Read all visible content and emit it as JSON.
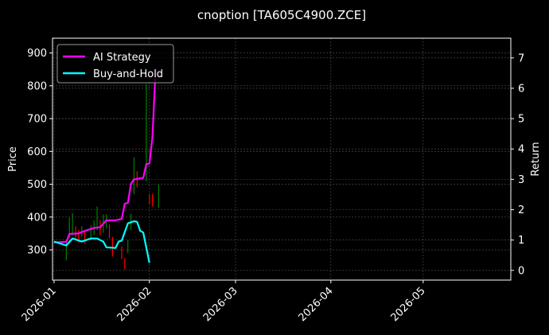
{
  "chart_data": {
    "type": "line",
    "title": "cnoption [TA605C4900.ZCE]",
    "ylabel": "Price",
    "y2label": "Return",
    "ylim": [
      208,
      945
    ],
    "y2lim": [
      -0.32,
      7.65
    ],
    "y_ticks": [
      300,
      400,
      500,
      600,
      700,
      800,
      900
    ],
    "y2_ticks": [
      0,
      1,
      2,
      3,
      4,
      5,
      6,
      7
    ],
    "x_ticks": [
      "2026-01",
      "2026-02",
      "2026-03",
      "2026-04",
      "2026-05"
    ],
    "x_tick_days": [
      0,
      31,
      59,
      90,
      120
    ],
    "xlim_days": [
      -0.5,
      148.5
    ],
    "grid": true,
    "legend_position": "top-left",
    "colors": {
      "background": "#000000",
      "text": "#ffffff",
      "grid": "#555555",
      "up": "#008000",
      "down": "#ff0000",
      "ai_strategy": "#ff00ff",
      "buy_and_hold": "#00ffff"
    },
    "candles": [
      {
        "day": 4,
        "low": 268,
        "high": 328
      },
      {
        "day": 5,
        "low": 336,
        "high": 398
      },
      {
        "day": 6,
        "low": 345,
        "high": 412
      },
      {
        "day": 7,
        "low": 330,
        "high": 372
      },
      {
        "day": 8,
        "low": 322,
        "high": 360
      },
      {
        "day": 9,
        "low": 340,
        "high": 372
      },
      {
        "day": 10,
        "low": 318,
        "high": 360
      },
      {
        "day": 12,
        "low": 330,
        "high": 375
      },
      {
        "day": 13,
        "low": 345,
        "high": 390
      },
      {
        "day": 14,
        "low": 360,
        "high": 432
      },
      {
        "day": 15,
        "low": 345,
        "high": 390
      },
      {
        "day": 16,
        "low": 352,
        "high": 408
      },
      {
        "day": 17,
        "low": 366,
        "high": 408
      },
      {
        "day": 18,
        "low": 335,
        "high": 378
      },
      {
        "day": 19,
        "low": 280,
        "high": 340
      },
      {
        "day": 22,
        "low": 272,
        "high": 310
      },
      {
        "day": 23,
        "low": 240,
        "high": 275
      },
      {
        "day": 24,
        "low": 290,
        "high": 330
      },
      {
        "day": 25,
        "low": 360,
        "high": 410
      },
      {
        "day": 26,
        "low": 470,
        "high": 582
      },
      {
        "day": 27,
        "low": 490,
        "high": 540
      },
      {
        "day": 30,
        "low": 510,
        "high": 805
      },
      {
        "day": 31,
        "low": 440,
        "high": 470
      },
      {
        "day": 32,
        "low": 432,
        "high": 470
      },
      {
        "day": 34,
        "low": 428,
        "high": 500
      }
    ],
    "series": [
      {
        "name": "AI Strategy",
        "color": "#ff00ff",
        "points": [
          [
            0,
            0.92
          ],
          [
            4,
            0.94
          ],
          [
            5,
            1.2
          ],
          [
            8,
            1.22
          ],
          [
            10,
            1.3
          ],
          [
            13,
            1.4
          ],
          [
            15,
            1.42
          ],
          [
            17,
            1.65
          ],
          [
            20,
            1.65
          ],
          [
            22,
            1.7
          ],
          [
            23,
            2.2
          ],
          [
            24,
            2.22
          ],
          [
            25,
            2.85
          ],
          [
            26,
            3.0
          ],
          [
            29,
            3.05
          ],
          [
            30,
            3.5
          ],
          [
            31,
            3.52
          ],
          [
            32,
            4.4
          ],
          [
            33,
            6.6
          ]
        ]
      },
      {
        "name": "Buy-and-Hold",
        "color": "#00ffff",
        "points": [
          [
            0,
            0.95
          ],
          [
            4,
            0.82
          ],
          [
            6,
            1.05
          ],
          [
            7,
            1.02
          ],
          [
            9,
            0.95
          ],
          [
            12,
            1.05
          ],
          [
            14,
            1.05
          ],
          [
            16,
            0.95
          ],
          [
            17,
            0.76
          ],
          [
            20,
            0.74
          ],
          [
            21,
            0.95
          ],
          [
            22,
            0.98
          ],
          [
            24,
            1.55
          ],
          [
            26,
            1.62
          ],
          [
            27,
            1.6
          ],
          [
            28,
            1.3
          ],
          [
            29,
            1.25
          ],
          [
            31,
            0.25
          ]
        ]
      }
    ]
  }
}
